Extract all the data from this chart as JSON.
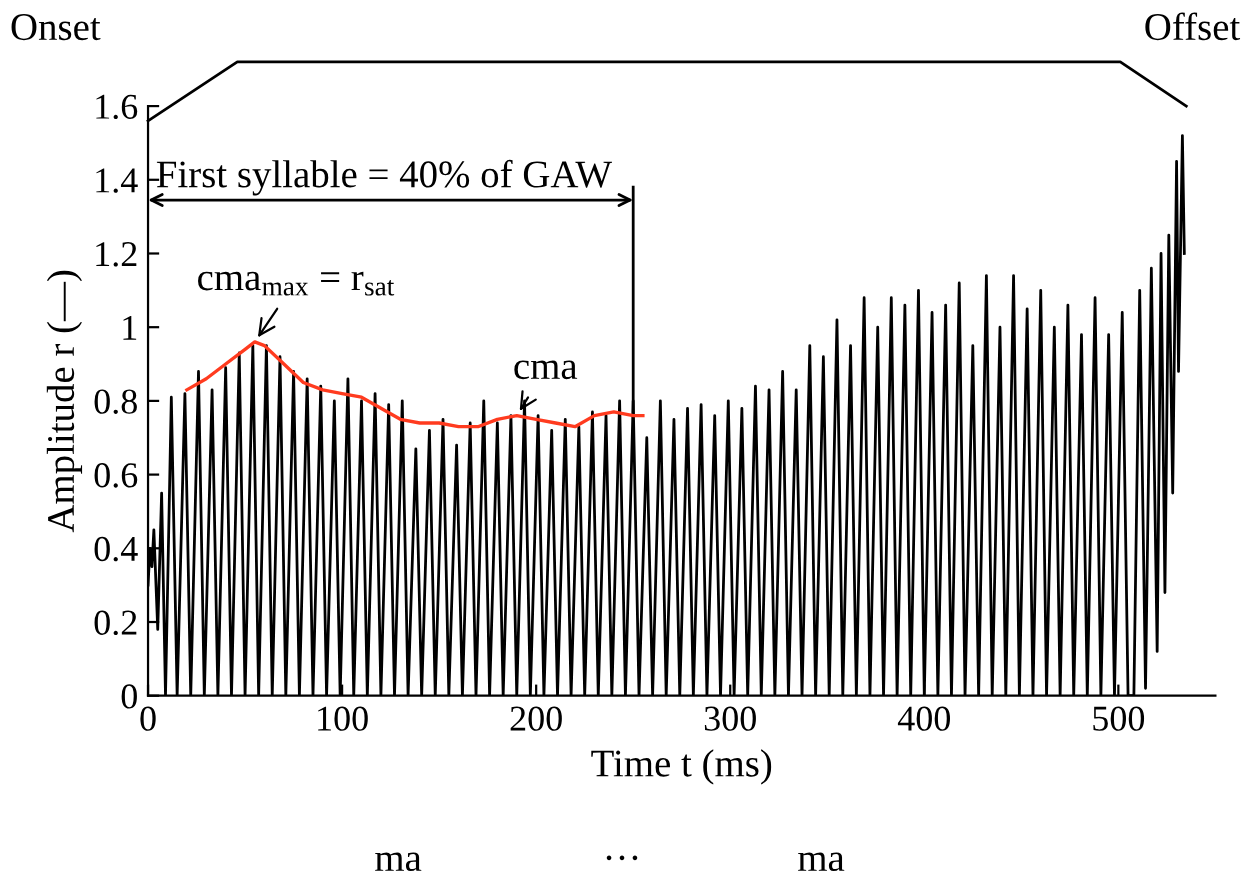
{
  "chart_data": {
    "type": "line",
    "xlabel": "Time t (ms)",
    "ylabel": "Amplitude r (—)",
    "xlim": [
      0,
      550
    ],
    "xticks": [
      0,
      100,
      200,
      300,
      400,
      500
    ],
    "ylim": [
      0,
      1.6
    ],
    "yticks": [
      0,
      0.2,
      0.4,
      0.6,
      0.8,
      1,
      1.2,
      1.4,
      1.6
    ],
    "grid": false,
    "marker": "none",
    "line_style": "solid",
    "series": [
      {
        "color": "#000000",
        "x": [
          0,
          1,
          2,
          3,
          5,
          7,
          9,
          12,
          15,
          19,
          22,
          26,
          29,
          33,
          36,
          40,
          43,
          47,
          50,
          54,
          57,
          61,
          64,
          68,
          71,
          75,
          78,
          82,
          85,
          89,
          92,
          96,
          99,
          103,
          106,
          110,
          113,
          117,
          120,
          124,
          127,
          131,
          134,
          138,
          141,
          145,
          148,
          152,
          155,
          159,
          162,
          166,
          169,
          173,
          176,
          180,
          183,
          187,
          190,
          194,
          197,
          201,
          204,
          208,
          211,
          215,
          218,
          222,
          225,
          229,
          232,
          236,
          239,
          243,
          246,
          250,
          253,
          257,
          260,
          264,
          267,
          271,
          274,
          278,
          281,
          285,
          288,
          292,
          295,
          299,
          302,
          306,
          309,
          313,
          316,
          320,
          323,
          327,
          330,
          334,
          337,
          341,
          344,
          348,
          351,
          355,
          358,
          362,
          365,
          369,
          372,
          376,
          379,
          383,
          386,
          390,
          393,
          397,
          400,
          404,
          407,
          411,
          414,
          418,
          421,
          425,
          428,
          432,
          435,
          439,
          442,
          446,
          449,
          453,
          456,
          460,
          463,
          467,
          470,
          474,
          477,
          481,
          484,
          488,
          491,
          495,
          498,
          502,
          505,
          508,
          511,
          514,
          517,
          520,
          522,
          524,
          526,
          528,
          530,
          531,
          533,
          534
        ],
        "values": [
          0.3,
          0.4,
          0.35,
          0.45,
          0.18,
          0.55,
          0,
          0.81,
          0,
          0.82,
          0,
          0.88,
          0,
          0.83,
          0,
          0.89,
          0,
          0.93,
          0,
          0.95,
          0,
          0.95,
          0,
          0.92,
          0,
          0.88,
          0,
          0.86,
          0,
          0.84,
          0,
          0.8,
          0,
          0.86,
          0,
          0.8,
          0,
          0.82,
          0,
          0.79,
          0,
          0.8,
          0,
          0.67,
          0,
          0.72,
          0,
          0.75,
          0,
          0.68,
          0,
          0.74,
          0,
          0.8,
          0,
          0.74,
          0,
          0.76,
          0,
          0.8,
          0,
          0.76,
          0,
          0.72,
          0,
          0.75,
          0,
          0.73,
          0,
          0.77,
          0,
          0.76,
          0,
          0.8,
          0,
          0.8,
          0,
          0.7,
          0,
          0.8,
          0,
          0.75,
          0,
          0.78,
          0,
          0.79,
          0,
          0.76,
          0,
          0.8,
          0,
          0.78,
          0,
          0.84,
          0,
          0.83,
          0,
          0.88,
          0,
          0.83,
          0,
          0.95,
          0,
          0.92,
          0,
          1.02,
          0,
          0.95,
          0,
          1.08,
          0,
          1,
          0,
          1.08,
          0,
          1.06,
          0,
          1.1,
          0,
          1.04,
          0,
          1.06,
          0,
          1.12,
          0,
          0.95,
          0,
          1.14,
          0,
          1,
          0,
          1.14,
          0,
          1.05,
          0,
          1.1,
          0,
          1,
          0,
          1.06,
          0,
          0.98,
          0,
          1.08,
          0,
          0.98,
          0,
          1.04,
          0,
          0,
          1.1,
          0.02,
          1.16,
          0.12,
          1.2,
          0.28,
          1.25,
          0.55,
          1.45,
          0.88,
          1.52,
          1.2
        ]
      },
      {
        "color": "#ff3b1f",
        "x": [
          20,
          30,
          40,
          50,
          55,
          60,
          70,
          80,
          90,
          100,
          110,
          120,
          130,
          140,
          150,
          160,
          170,
          180,
          190,
          200,
          210,
          220,
          230,
          240,
          250,
          255
        ],
        "values": [
          0.83,
          0.86,
          0.9,
          0.94,
          0.96,
          0.95,
          0.9,
          0.85,
          0.83,
          0.82,
          0.81,
          0.78,
          0.75,
          0.74,
          0.74,
          0.73,
          0.73,
          0.75,
          0.76,
          0.75,
          0.74,
          0.73,
          0.76,
          0.77,
          0.76,
          0.76
        ]
      }
    ],
    "annotations": [
      "Onset",
      "Offset",
      {
        "text": "First syllable = 40% of GAW",
        "x": 250,
        "y": 0.76
      },
      {
        "text": "cma$_{max}$ = r$_{sat}$",
        "x": 55,
        "y": 0.96
      },
      {
        "text": "cma",
        "x": 190,
        "y": 0.76
      },
      "ma",
      "···",
      "ma"
    ]
  }
}
